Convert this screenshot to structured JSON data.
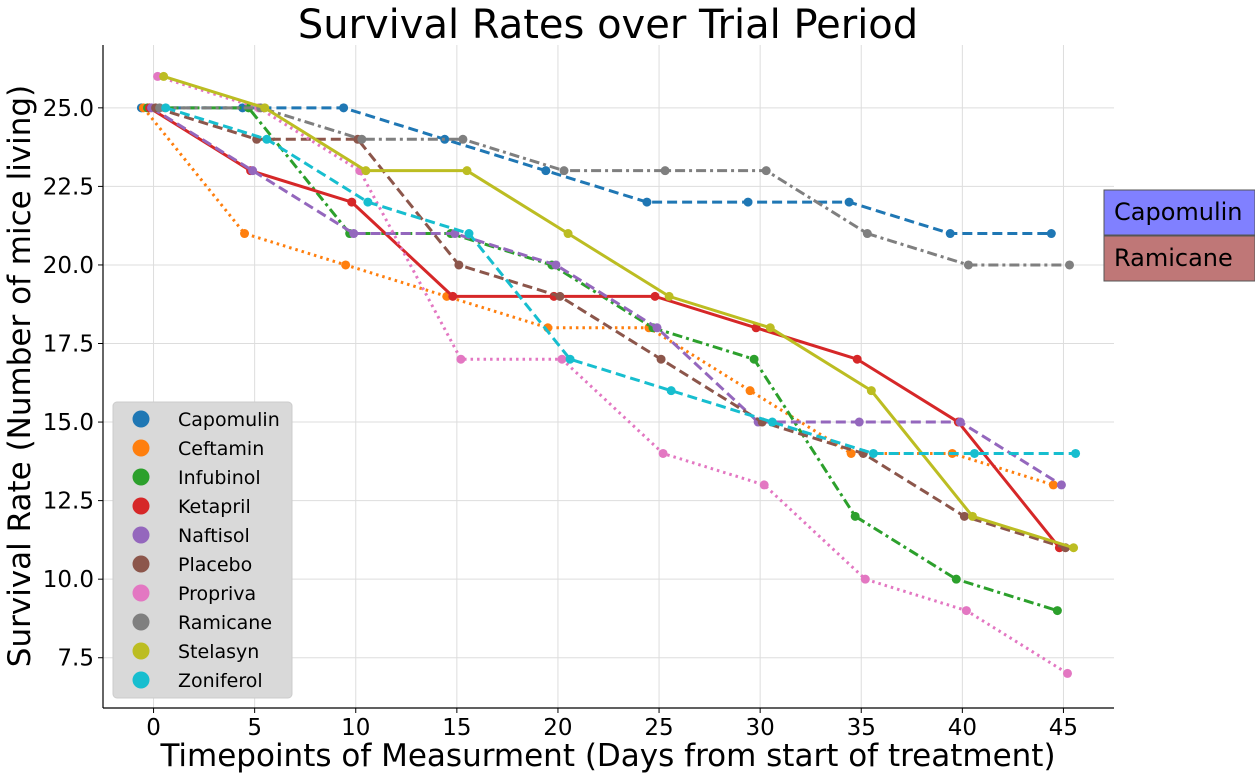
{
  "chart_data": {
    "type": "line",
    "title": "Survival Rates over Trial Period",
    "xlabel": "Timepoints of Measurment (Days from start of treatment)",
    "ylabel": "Survival Rate (Number of mice living)",
    "xlim": [
      -2.5,
      47.5
    ],
    "ylim": [
      5.9,
      27.0
    ],
    "xticks": [
      0,
      5,
      10,
      15,
      20,
      25,
      30,
      35,
      40,
      45
    ],
    "xtick_labels": [
      "0",
      "5",
      "10",
      "15",
      "20",
      "25",
      "30",
      "35",
      "40",
      "45"
    ],
    "yticks": [
      7.5,
      10.0,
      12.5,
      15.0,
      17.5,
      20.0,
      22.5,
      25.0
    ],
    "ytick_labels": [
      "7.5",
      "10.0",
      "12.5",
      "15.0",
      "17.5",
      "20.0",
      "22.5",
      "25.0"
    ],
    "grid": true,
    "legend_position": "lower-left",
    "series": [
      {
        "name": "Capomulin",
        "color": "#1f77b4",
        "dash": "dashed",
        "x": [
          -0.6,
          4.4,
          9.4,
          14.4,
          19.4,
          24.4,
          29.4,
          34.4,
          39.4,
          44.4
        ],
        "y": [
          25,
          25,
          25,
          24,
          23,
          22,
          22,
          22,
          21,
          21
        ]
      },
      {
        "name": "Ceftamin",
        "color": "#ff7f0e",
        "dash": "dotted",
        "x": [
          -0.5,
          4.5,
          9.5,
          14.5,
          19.5,
          24.5,
          29.5,
          34.5,
          39.5,
          44.5
        ],
        "y": [
          25,
          21,
          20,
          19,
          18,
          18,
          16,
          14,
          14,
          13
        ]
      },
      {
        "name": "Infubinol",
        "color": "#2ca02c",
        "dash": "dashdot",
        "x": [
          -0.3,
          4.7,
          9.7,
          14.7,
          19.7,
          24.7,
          29.7,
          34.7,
          39.7,
          44.7
        ],
        "y": [
          25,
          25,
          21,
          21,
          20,
          18,
          17,
          12,
          10,
          9
        ]
      },
      {
        "name": "Ketapril",
        "color": "#d62728",
        "dash": "solid",
        "x": [
          -0.2,
          4.8,
          9.8,
          14.8,
          19.8,
          24.8,
          29.8,
          34.8,
          39.8,
          44.8
        ],
        "y": [
          25,
          23,
          22,
          19,
          19,
          19,
          18,
          17,
          15,
          11
        ]
      },
      {
        "name": "Naftisol",
        "color": "#9467bd",
        "dash": "dashed",
        "x": [
          -0.1,
          4.9,
          9.9,
          14.9,
          19.9,
          24.9,
          29.9,
          34.9,
          39.9,
          44.9
        ],
        "y": [
          25,
          23,
          21,
          21,
          20,
          18,
          15,
          15,
          15,
          13
        ]
      },
      {
        "name": "Placebo",
        "color": "#8c564b",
        "dash": "dashed",
        "x": [
          0.1,
          5.1,
          10.1,
          15.1,
          20.1,
          25.1,
          30.1,
          35.1,
          40.1,
          45.1
        ],
        "y": [
          25,
          24,
          24,
          20,
          19,
          17,
          15,
          14,
          12,
          11
        ]
      },
      {
        "name": "Propriva",
        "color": "#e377c2",
        "dash": "dotted",
        "x": [
          0.2,
          5.2,
          10.2,
          15.2,
          20.2,
          25.2,
          30.2,
          35.2,
          40.2,
          45.2
        ],
        "y": [
          26,
          25,
          23,
          17,
          17,
          14,
          13,
          10,
          9,
          7
        ]
      },
      {
        "name": "Ramicane",
        "color": "#7f7f7f",
        "dash": "dashdot",
        "x": [
          0.3,
          5.3,
          10.3,
          15.3,
          20.3,
          25.3,
          30.3,
          35.3,
          40.3,
          45.3
        ],
        "y": [
          25,
          25,
          24,
          24,
          23,
          23,
          23,
          21,
          20,
          20
        ]
      },
      {
        "name": "Stelasyn",
        "color": "#bcbd22",
        "dash": "solid",
        "x": [
          0.5,
          5.5,
          10.5,
          15.5,
          20.5,
          25.5,
          30.5,
          35.5,
          40.5,
          45.5
        ],
        "y": [
          26,
          25,
          23,
          23,
          21,
          19,
          18,
          16,
          12,
          11
        ]
      },
      {
        "name": "Zoniferol",
        "color": "#17becf",
        "dash": "dashed",
        "x": [
          0.6,
          5.6,
          10.6,
          15.6,
          20.6,
          25.6,
          30.6,
          35.6,
          40.6,
          45.6
        ],
        "y": [
          25,
          24,
          22,
          21,
          17,
          16,
          15,
          14,
          14,
          14
        ]
      }
    ],
    "callouts": [
      {
        "text": "Capomulin",
        "color": "#8080ff"
      },
      {
        "text": "Ramicane",
        "color": "#bf7777"
      }
    ]
  }
}
